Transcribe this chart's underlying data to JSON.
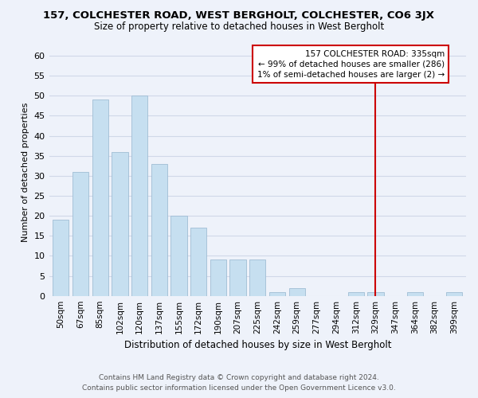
{
  "title": "157, COLCHESTER ROAD, WEST BERGHOLT, COLCHESTER, CO6 3JX",
  "subtitle": "Size of property relative to detached houses in West Bergholt",
  "xlabel": "Distribution of detached houses by size in West Bergholt",
  "ylabel": "Number of detached properties",
  "categories": [
    "50sqm",
    "67sqm",
    "85sqm",
    "102sqm",
    "120sqm",
    "137sqm",
    "155sqm",
    "172sqm",
    "190sqm",
    "207sqm",
    "225sqm",
    "242sqm",
    "259sqm",
    "277sqm",
    "294sqm",
    "312sqm",
    "329sqm",
    "347sqm",
    "364sqm",
    "382sqm",
    "399sqm"
  ],
  "bar_values": [
    19,
    31,
    49,
    36,
    50,
    33,
    20,
    17,
    9,
    9,
    9,
    1,
    2,
    0,
    0,
    1,
    1,
    0,
    1,
    0,
    1
  ],
  "bar_color": "#c6dff0",
  "bar_edge_color": "#a0bdd4",
  "ylim": [
    0,
    62
  ],
  "yticks": [
    0,
    5,
    10,
    15,
    20,
    25,
    30,
    35,
    40,
    45,
    50,
    55,
    60
  ],
  "vline_x_idx": 16,
  "vline_color": "#cc0000",
  "annotation_line1": "157 COLCHESTER ROAD: 335sqm",
  "annotation_line2": "← 99% of detached houses are smaller (286)",
  "annotation_line3": "1% of semi-detached houses are larger (2) →",
  "annotation_box_color": "#ffffff",
  "annotation_box_edge": "#cc0000",
  "footer1": "Contains HM Land Registry data © Crown copyright and database right 2024.",
  "footer2": "Contains public sector information licensed under the Open Government Licence v3.0.",
  "background_color": "#eef2fa",
  "grid_color": "#d0d8e8",
  "title_fontsize": 9.5,
  "subtitle_fontsize": 8.5,
  "ylabel_fontsize": 8,
  "xlabel_fontsize": 8.5,
  "tick_fontsize": 7.5,
  "footer_fontsize": 6.5
}
